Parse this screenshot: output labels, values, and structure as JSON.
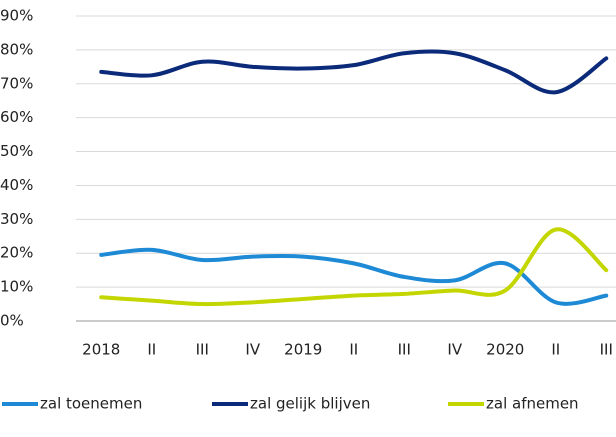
{
  "chart_data": {
    "type": "line",
    "categories": [
      "2018",
      "II",
      "III",
      "IV",
      "2019",
      "II",
      "III",
      "IV",
      "2020",
      "II",
      "III"
    ],
    "series": [
      {
        "name": "zal toenemen",
        "color": "#1e8ad6",
        "values": [
          19.5,
          21,
          18,
          19,
          19,
          17,
          13,
          12,
          17,
          5.5,
          7.5
        ]
      },
      {
        "name": "zal gelijk blijven",
        "color": "#0b2a7a",
        "values": [
          73.5,
          72.5,
          76.5,
          75,
          74.5,
          75.5,
          79,
          79,
          74,
          67.5,
          77.5
        ]
      },
      {
        "name": "zal afnemen",
        "color": "#c3d600",
        "values": [
          7,
          6,
          5,
          5.5,
          6.5,
          7.5,
          8,
          9,
          9,
          27,
          15
        ]
      }
    ],
    "ylim": [
      0,
      90
    ],
    "yticks": [
      {
        "value": 0,
        "label": "0%"
      },
      {
        "value": 10,
        "label": "10%"
      },
      {
        "value": 20,
        "label": "20%"
      },
      {
        "value": 30,
        "label": "30%"
      },
      {
        "value": 40,
        "label": "40%"
      },
      {
        "value": 50,
        "label": "50%"
      },
      {
        "value": 60,
        "label": "60%"
      },
      {
        "value": 70,
        "label": "70%"
      },
      {
        "value": 80,
        "label": "80%"
      },
      {
        "value": 90,
        "label": "90%"
      }
    ],
    "grid": true,
    "legend": "bottom"
  }
}
